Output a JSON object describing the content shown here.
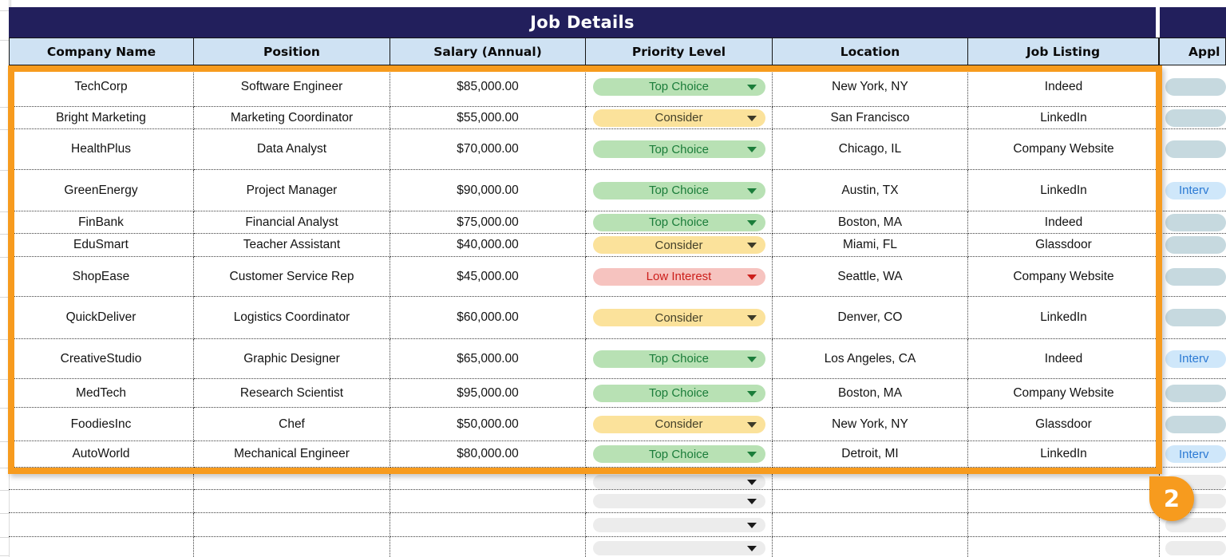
{
  "header": {
    "title": "Job Details",
    "appl_column": "Appl"
  },
  "columns": [
    "Company Name",
    "Position",
    "Salary (Annual)",
    "Priority Level",
    "Location",
    "Job Listing"
  ],
  "rows": [
    {
      "company": "TechCorp",
      "position": "Software Engineer",
      "salary": "$85,000.00",
      "priority": {
        "label": "Top Choice",
        "state": "top"
      },
      "location": "New York, NY",
      "listing": "Indeed",
      "application": {
        "label": "",
        "state": "blank"
      }
    },
    {
      "company": "Bright Marketing",
      "position": "Marketing Coordinator",
      "salary": "$55,000.00",
      "priority": {
        "label": "Consider",
        "state": "consider"
      },
      "location": "San Francisco",
      "listing": "LinkedIn",
      "application": {
        "label": "",
        "state": "blank"
      }
    },
    {
      "company": "HealthPlus",
      "position": "Data Analyst",
      "salary": "$70,000.00",
      "priority": {
        "label": "Top Choice",
        "state": "top"
      },
      "location": "Chicago, IL",
      "listing": "Company Website",
      "application": {
        "label": "",
        "state": "blank"
      }
    },
    {
      "company": "GreenEnergy",
      "position": "Project Manager",
      "salary": "$90,000.00",
      "priority": {
        "label": "Top Choice",
        "state": "top"
      },
      "location": "Austin, TX",
      "listing": "LinkedIn",
      "application": {
        "label": "Interv",
        "state": "interview"
      }
    },
    {
      "company": "FinBank",
      "position": "Financial Analyst",
      "salary": "$75,000.00",
      "priority": {
        "label": "Top Choice",
        "state": "top"
      },
      "location": "Boston, MA",
      "listing": "Indeed",
      "application": {
        "label": "",
        "state": "blank"
      }
    },
    {
      "company": "EduSmart",
      "position": "Teacher Assistant",
      "salary": "$40,000.00",
      "priority": {
        "label": "Consider",
        "state": "consider"
      },
      "location": "Miami, FL",
      "listing": "Glassdoor",
      "application": {
        "label": "",
        "state": "blank"
      }
    },
    {
      "company": "ShopEase",
      "position": "Customer Service Rep",
      "salary": "$45,000.00",
      "priority": {
        "label": "Low Interest",
        "state": "low"
      },
      "location": "Seattle, WA",
      "listing": "Company Website",
      "application": {
        "label": "",
        "state": "blank"
      }
    },
    {
      "company": "QuickDeliver",
      "position": "Logistics Coordinator",
      "salary": "$60,000.00",
      "priority": {
        "label": "Consider",
        "state": "consider"
      },
      "location": "Denver, CO",
      "listing": "LinkedIn",
      "application": {
        "label": "",
        "state": "blank"
      }
    },
    {
      "company": "CreativeStudio",
      "position": "Graphic Designer",
      "salary": "$65,000.00",
      "priority": {
        "label": "Top Choice",
        "state": "top"
      },
      "location": "Los Angeles, CA",
      "listing": "Indeed",
      "application": {
        "label": "Interv",
        "state": "interview"
      }
    },
    {
      "company": "MedTech",
      "position": "Research Scientist",
      "salary": "$95,000.00",
      "priority": {
        "label": "Top Choice",
        "state": "top"
      },
      "location": "Boston, MA",
      "listing": "Company Website",
      "application": {
        "label": "",
        "state": "blank"
      }
    },
    {
      "company": "FoodiesInc",
      "position": "Chef",
      "salary": "$50,000.00",
      "priority": {
        "label": "Consider",
        "state": "consider"
      },
      "location": "New York, NY",
      "listing": "Glassdoor",
      "application": {
        "label": "",
        "state": "blank"
      }
    },
    {
      "company": "AutoWorld",
      "position": "Mechanical Engineer",
      "salary": "$80,000.00",
      "priority": {
        "label": "Top Choice",
        "state": "top"
      },
      "location": "Detroit, MI",
      "listing": "LinkedIn",
      "application": {
        "label": "Interv",
        "state": "interview"
      }
    }
  ],
  "empty_row_count": 4,
  "badge": {
    "label": "2"
  },
  "colors": {
    "navy": "#221f5c",
    "header_bg": "#cfe2f3",
    "selection": "#f79b1e",
    "chip_top_bg": "#b8e1b4",
    "chip_top_text": "#1b7d3a",
    "chip_consider_bg": "#fbe29b",
    "chip_consider_text": "#44412a",
    "chip_low_bg": "#f6c3bf",
    "chip_low_text": "#cc1e1a",
    "chip_blank_bg": "#ececec",
    "appl_chip_bg": "#c6d9df",
    "appl_interview_bg": "#cfe7fa",
    "appl_interview_text": "#2c7ad4"
  }
}
